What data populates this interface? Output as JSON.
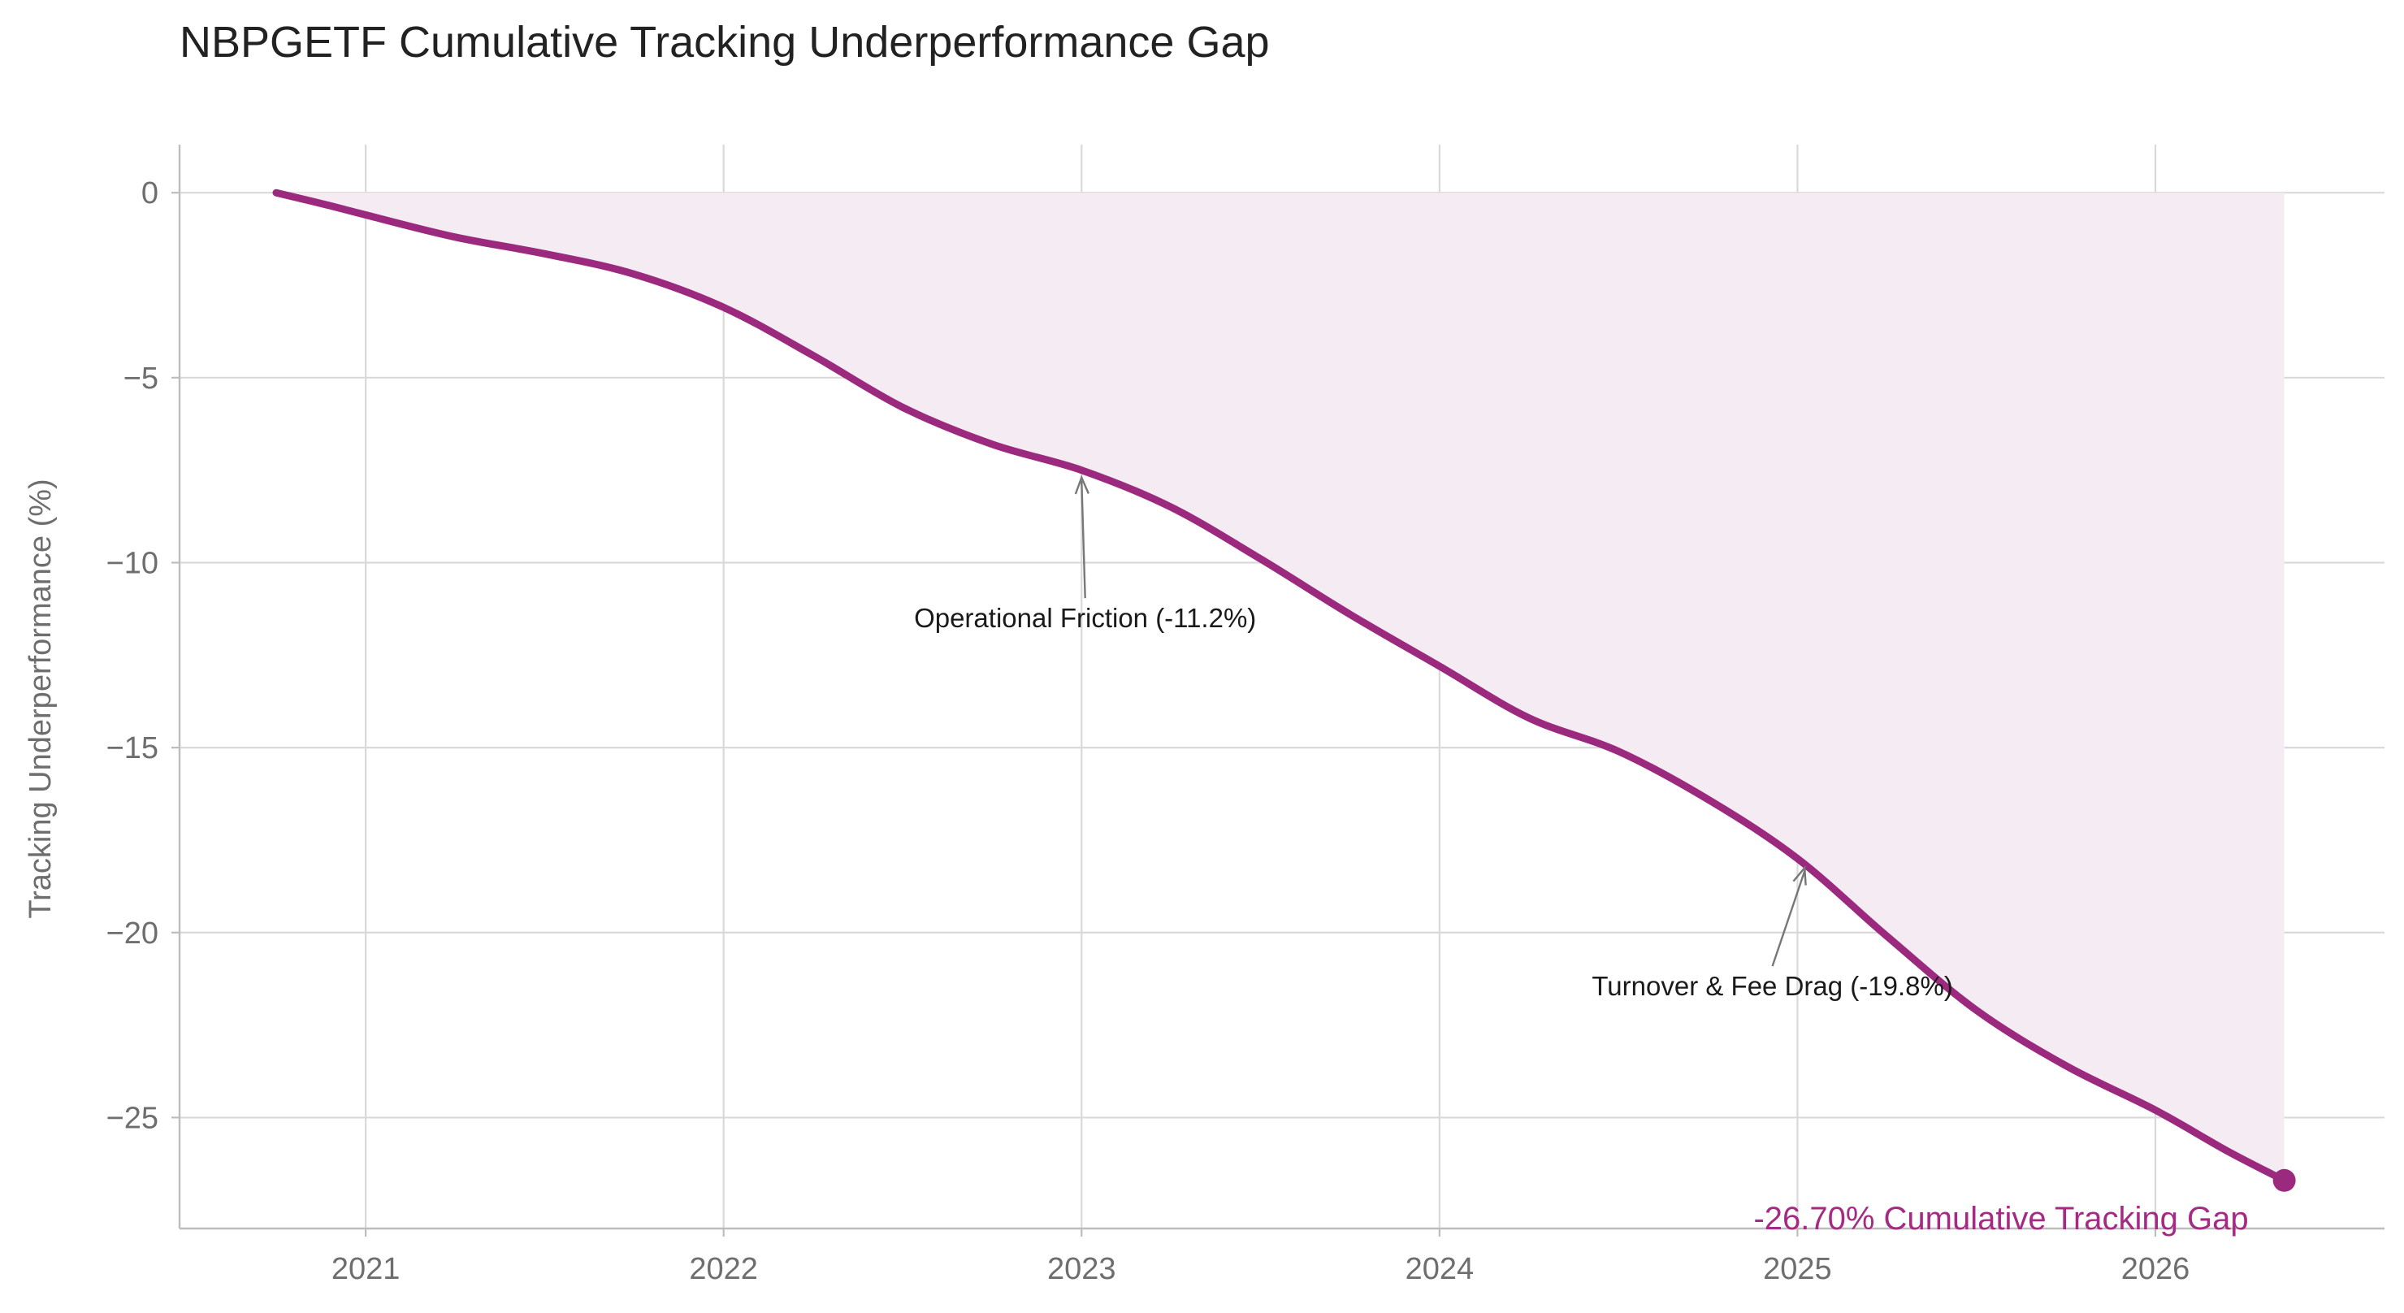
{
  "chart_data": {
    "type": "line",
    "title": "NBPGETF Cumulative Tracking Underperformance Gap",
    "xlabel": "",
    "ylabel": "Tracking Underperformance (%)",
    "x_ticks": [
      "2021",
      "2022",
      "2023",
      "2024",
      "2025",
      "2026"
    ],
    "x_tick_values": [
      2021,
      2022,
      2023,
      2024,
      2025,
      2026
    ],
    "y_ticks": [
      "0",
      "−5",
      "−10",
      "−15",
      "−20",
      "−25"
    ],
    "y_tick_values": [
      0,
      -5,
      -10,
      -15,
      -20,
      -25
    ],
    "xlim": [
      2020.48,
      2026.64
    ],
    "ylim": [
      -28.0,
      1.3
    ],
    "grid": true,
    "fill_to_zero": true,
    "colors": {
      "line": "#9b2a7f",
      "fill": "#f5ecf3",
      "grid": "#d9d9d9",
      "axis": "#bdbdbd",
      "tick_text": "#6e6e6e",
      "title_text": "#222222",
      "annotation_text": "#1a1a1a",
      "arrow": "#777777",
      "final_label": "#a52a83"
    },
    "series": [
      {
        "x": [
          2020.75,
          2020.9,
          2021.0,
          2021.25,
          2021.5,
          2021.75,
          2022.0,
          2022.25,
          2022.5,
          2022.75,
          2023.0,
          2023.25,
          2023.5,
          2023.75,
          2024.0,
          2024.25,
          2024.5,
          2024.75,
          2025.0,
          2025.25,
          2025.5,
          2025.75,
          2026.0,
          2026.2,
          2026.36
        ],
        "y": [
          0.0,
          -0.35,
          -0.6,
          -1.2,
          -1.65,
          -2.2,
          -3.1,
          -4.4,
          -5.8,
          -6.8,
          -7.5,
          -8.5,
          -9.9,
          -11.4,
          -12.8,
          -14.2,
          -15.1,
          -16.4,
          -18.0,
          -20.1,
          -22.1,
          -23.6,
          -24.8,
          -25.9,
          -26.7
        ]
      }
    ],
    "annotations": [
      {
        "text": "Operational Friction (-11.2%)",
        "point": [
          2023.0,
          -7.7
        ],
        "text_pos": [
          2023.01,
          -11.75
        ]
      },
      {
        "text": "Turnover & Fee Drag (-19.8%)",
        "point": [
          2025.02,
          -18.25
        ],
        "text_pos": [
          2024.93,
          -21.7
        ]
      }
    ],
    "final_point": {
      "x": 2026.36,
      "y": -26.7,
      "label": "-26.70% Cumulative Tracking Gap"
    }
  }
}
